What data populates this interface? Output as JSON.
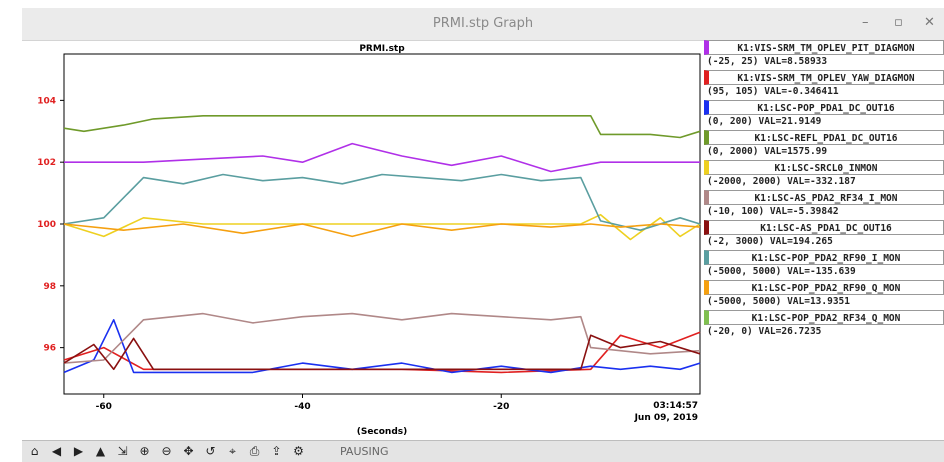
{
  "window": {
    "title": "PRMI.stp Graph",
    "controls": [
      "–",
      "▫",
      "✕"
    ]
  },
  "toolbar": {
    "icons": [
      "home-icon",
      "back-icon",
      "forward-icon",
      "up-icon",
      "fit-icon",
      "zoom-in-icon",
      "zoom-out-icon",
      "pan-icon",
      "reset-icon",
      "cursor-icon",
      "print-icon",
      "export-icon",
      "settings-icon"
    ],
    "glyphs": [
      "⌂",
      "◀",
      "▶",
      "▲",
      "⇲",
      "⊕",
      "⊖",
      "✥",
      "↺",
      "⌖",
      "⎙",
      "⇪",
      "⚙"
    ],
    "status": "PAUSING"
  },
  "chart_data": {
    "type": "line",
    "title": "PRMI.stp",
    "xlabel": "(Seconds)",
    "ylabel": "",
    "xlim": [
      -64,
      0
    ],
    "ylim": [
      94.5,
      105.5
    ],
    "xticks": [
      -60,
      -40,
      -20
    ],
    "yticks": [
      96,
      98,
      100,
      102,
      104
    ],
    "timestamp": [
      "03:14:57",
      "Jun 09, 2019"
    ],
    "grid": false,
    "legend": "right",
    "series": [
      {
        "name": "K1:VIS-SRM_TM_OPLEV_PIT_DIAGMON",
        "range": "(-25, 25) VAL=8.58933",
        "color": "#b030e8",
        "x": [
          -64,
          -56,
          -50,
          -44,
          -40,
          -35,
          -30,
          -25,
          -20,
          -15,
          -10,
          -5,
          0
        ],
        "y": [
          102.0,
          102.0,
          102.1,
          102.2,
          102.0,
          102.6,
          102.2,
          101.9,
          102.2,
          101.7,
          102.0,
          102.0,
          102.0
        ]
      },
      {
        "name": "K1:VIS-SRM_TM_OPLEV_YAW_DIAGMON",
        "range": "(95, 105) VAL=-0.346411",
        "color": "#e02020",
        "x": [
          -64,
          -60,
          -56,
          -50,
          -40,
          -30,
          -20,
          -11,
          -8,
          -4,
          0
        ],
        "y": [
          95.6,
          96.0,
          95.3,
          95.3,
          95.3,
          95.3,
          95.2,
          95.3,
          96.4,
          96.0,
          96.5
        ]
      },
      {
        "name": "K1:LSC-POP_PDA1_DC_OUT16",
        "range": "(0, 200) VAL=21.9149",
        "color": "#1a30f0",
        "x": [
          -64,
          -61,
          -59,
          -57,
          -50,
          -45,
          -40,
          -35,
          -30,
          -25,
          -20,
          -15,
          -11,
          -8,
          -5,
          -2,
          0
        ],
        "y": [
          95.2,
          95.6,
          96.9,
          95.2,
          95.2,
          95.2,
          95.5,
          95.3,
          95.5,
          95.2,
          95.4,
          95.2,
          95.4,
          95.3,
          95.4,
          95.3,
          95.5
        ]
      },
      {
        "name": "K1:LSC-REFL_PDA1_DC_OUT16",
        "range": "(0, 2000) VAL=1575.99",
        "color": "#6f9a2a",
        "x": [
          -64,
          -62,
          -58,
          -55,
          -50,
          -40,
          -30,
          -20,
          -15,
          -11,
          -10,
          -5,
          -2,
          0
        ],
        "y": [
          103.1,
          103.0,
          103.2,
          103.4,
          103.5,
          103.5,
          103.5,
          103.5,
          103.5,
          103.5,
          102.9,
          102.9,
          102.8,
          103.0
        ]
      },
      {
        "name": "K1:LSC-SRCL0_INMON",
        "range": "(-2000, 2000) VAL=-332.187",
        "color": "#eed020",
        "x": [
          -64,
          -60,
          -56,
          -50,
          -40,
          -30,
          -20,
          -12,
          -10,
          -7,
          -4,
          -2,
          0
        ],
        "y": [
          100.0,
          99.6,
          100.2,
          100.0,
          100.0,
          100.0,
          100.0,
          100.0,
          100.3,
          99.5,
          100.2,
          99.6,
          100.0
        ]
      },
      {
        "name": "K1:LSC-AS_PDA2_RF34_I_MON",
        "range": "(-10, 100) VAL=-5.39842",
        "color": "#b08888",
        "x": [
          -64,
          -60,
          -56,
          -50,
          -45,
          -40,
          -35,
          -30,
          -25,
          -20,
          -15,
          -12,
          -11,
          -5,
          0
        ],
        "y": [
          95.5,
          95.6,
          96.9,
          97.1,
          96.8,
          97.0,
          97.1,
          96.9,
          97.1,
          97.0,
          96.9,
          97.0,
          96.0,
          95.8,
          95.9
        ]
      },
      {
        "name": "K1:LSC-AS_PDA1_DC_OUT16",
        "range": "(-2, 3000) VAL=194.265",
        "color": "#8a1010",
        "x": [
          -64,
          -61,
          -59,
          -57,
          -55,
          -50,
          -40,
          -30,
          -20,
          -12,
          -11,
          -8,
          -4,
          0
        ],
        "y": [
          95.5,
          96.1,
          95.3,
          96.3,
          95.3,
          95.3,
          95.3,
          95.3,
          95.3,
          95.3,
          96.4,
          96.0,
          96.2,
          95.8
        ]
      },
      {
        "name": "K1:LSC-POP_PDA2_RF90_I_MON",
        "range": "(-5000, 5000) VAL=-135.639",
        "color": "#5a9ea0",
        "x": [
          -64,
          -60,
          -56,
          -52,
          -48,
          -44,
          -40,
          -36,
          -32,
          -28,
          -24,
          -20,
          -16,
          -12,
          -10,
          -6,
          -2,
          0
        ],
        "y": [
          100.0,
          100.2,
          101.5,
          101.3,
          101.6,
          101.4,
          101.5,
          101.3,
          101.6,
          101.5,
          101.4,
          101.6,
          101.4,
          101.5,
          100.1,
          99.8,
          100.2,
          100.0
        ]
      },
      {
        "name": "K1:LSC-POP_PDA2_RF90_Q_MON",
        "range": "(-5000, 5000) VAL=13.9351",
        "color": "#f5a010",
        "x": [
          -64,
          -58,
          -52,
          -46,
          -40,
          -35,
          -30,
          -25,
          -20,
          -15,
          -11,
          -8,
          -4,
          0
        ],
        "y": [
          100.0,
          99.8,
          100.0,
          99.7,
          100.0,
          99.6,
          100.0,
          99.8,
          100.0,
          99.9,
          100.0,
          99.9,
          100.0,
          99.9
        ]
      },
      {
        "name": "K1:LSC-POP_PDA2_RF34_Q_MON",
        "range": "(-20, 0) VAL=26.7235",
        "color": "#80c050",
        "x": [],
        "y": []
      }
    ]
  }
}
